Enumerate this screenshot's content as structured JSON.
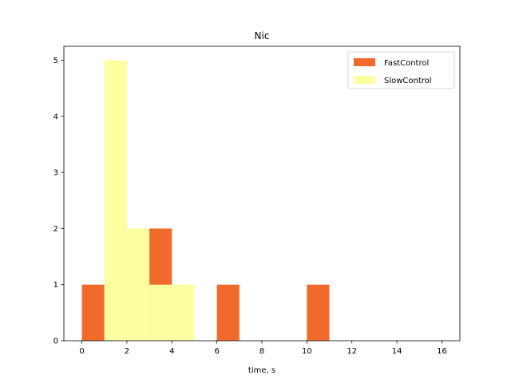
{
  "chart_data": {
    "type": "bar",
    "title": "Nic",
    "xlabel": "time, s",
    "ylabel": "",
    "xlim": [
      -0.8,
      16.8
    ],
    "ylim": [
      0,
      5.25
    ],
    "xticks": [
      0,
      2,
      4,
      6,
      8,
      10,
      12,
      14,
      16
    ],
    "yticks": [
      0,
      1,
      2,
      3,
      4,
      5
    ],
    "bin_width": 1,
    "grid": false,
    "legend_position": "top-right",
    "series": [
      {
        "name": "FastControl",
        "color": "#f06b2b",
        "bins": [
          {
            "x": 0,
            "count": 1
          },
          {
            "x": 1,
            "count": 0
          },
          {
            "x": 2,
            "count": 0
          },
          {
            "x": 3,
            "count": 2
          },
          {
            "x": 4,
            "count": 0
          },
          {
            "x": 5,
            "count": 0
          },
          {
            "x": 6,
            "count": 1
          },
          {
            "x": 7,
            "count": 0
          },
          {
            "x": 8,
            "count": 0
          },
          {
            "x": 9,
            "count": 0
          },
          {
            "x": 10,
            "count": 1
          },
          {
            "x": 11,
            "count": 0
          },
          {
            "x": 12,
            "count": 0
          },
          {
            "x": 13,
            "count": 0
          },
          {
            "x": 14,
            "count": 0
          },
          {
            "x": 15,
            "count": 0
          }
        ]
      },
      {
        "name": "SlowControl",
        "color": "#fdfea0",
        "bins": [
          {
            "x": 0,
            "count": 0
          },
          {
            "x": 1,
            "count": 5
          },
          {
            "x": 2,
            "count": 2
          },
          {
            "x": 3,
            "count": 1
          },
          {
            "x": 4,
            "count": 1
          },
          {
            "x": 5,
            "count": 0
          },
          {
            "x": 6,
            "count": 0
          },
          {
            "x": 7,
            "count": 0
          },
          {
            "x": 8,
            "count": 0
          },
          {
            "x": 9,
            "count": 0
          },
          {
            "x": 10,
            "count": 0
          },
          {
            "x": 11,
            "count": 0
          },
          {
            "x": 12,
            "count": 0
          },
          {
            "x": 13,
            "count": 0
          },
          {
            "x": 14,
            "count": 0
          },
          {
            "x": 15,
            "count": 0
          }
        ]
      }
    ]
  }
}
